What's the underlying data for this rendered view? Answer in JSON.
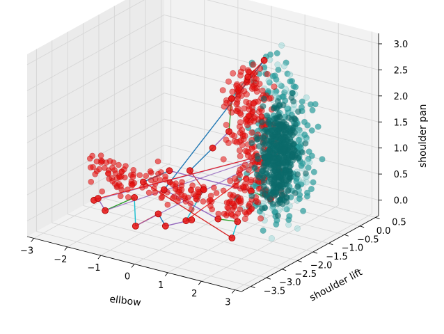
{
  "chart_data": {
    "type": "scatter",
    "projection": "3d",
    "title": "",
    "xlabel": "ellbow",
    "ylabel": "shoulder lift",
    "zlabel": "shoulder pan",
    "xlim": [
      -3.2,
      3.2
    ],
    "ylim": [
      -3.8,
      0.6
    ],
    "zlim": [
      -0.3,
      3.2
    ],
    "x_ticks": [
      -3,
      -2,
      -1,
      0,
      1,
      2,
      3
    ],
    "y_ticks": [
      -3.5,
      -3.0,
      -2.5,
      -2.0,
      -1.5,
      -1.0,
      -0.5,
      0.0,
      0.5
    ],
    "z_ticks": [
      0.0,
      0.5,
      1.0,
      1.5,
      2.0,
      2.5,
      3.0
    ],
    "x_tick_labels": [
      "−3",
      "−2",
      "−1",
      "0",
      "1",
      "2",
      "3"
    ],
    "y_tick_labels": [
      "−3.5",
      "−3.0",
      "−2.5",
      "−2.0",
      "−1.5",
      "−1.0",
      "−0.5",
      "0.0",
      "0.5"
    ],
    "z_tick_labels": [
      "0.0",
      "0.5",
      "1.0",
      "1.5",
      "2.0",
      "2.5",
      "3.0"
    ],
    "grid": true,
    "legend": "none",
    "colors": {
      "cloud": "#2a9d9d",
      "cloud_dark": "#0b6b6b",
      "cloud_light": "#8fd4d4",
      "red": "#e8100f",
      "red_edge": "#b00000",
      "pane": "#f2f2f2",
      "grid": "#d6d6d6",
      "line_blue": "#1f77b4",
      "line_purple": "#9467bd",
      "line_green": "#2ca02c",
      "line_cyan": "#17becf",
      "line_red": "#d62728"
    },
    "series": [
      {
        "name": "",
        "kind": "scatter",
        "color": "cloud",
        "points": [
          [
            1.6,
            -1.2,
            2.5
          ],
          [
            2.0,
            -1.0,
            2.1
          ],
          [
            1.9,
            -0.9,
            1.7
          ],
          [
            2.2,
            -1.3,
            1.3
          ],
          [
            1.7,
            -1.5,
            1.0
          ],
          [
            2.1,
            -1.1,
            0.6
          ],
          [
            2.4,
            -1.6,
            0.3
          ],
          [
            1.8,
            -1.8,
            2.0
          ],
          [
            2.3,
            -0.8,
            1.9
          ],
          [
            2.5,
            -1.4,
            1.5
          ],
          [
            2.6,
            -1.2,
            0.9
          ],
          [
            1.5,
            -0.7,
            2.3
          ],
          [
            2.0,
            -0.5,
            0.8
          ],
          [
            2.2,
            -2.0,
            0.5
          ],
          [
            1.4,
            -1.0,
            2.8
          ],
          [
            2.7,
            -1.9,
            1.2
          ],
          [
            1.9,
            -0.6,
            1.4
          ],
          [
            2.3,
            -1.7,
            2.2
          ],
          [
            1.7,
            -1.3,
            1.8
          ],
          [
            2.1,
            -2.2,
            0.9
          ]
        ]
      },
      {
        "name": "",
        "kind": "scatter",
        "color": "red",
        "points": [
          [
            -2.6,
            -2.3,
            0.0
          ],
          [
            -2.2,
            -2.6,
            0.2
          ],
          [
            -1.8,
            -2.8,
            0.1
          ],
          [
            -1.3,
            -2.4,
            0.3
          ],
          [
            -0.8,
            -2.9,
            0.0
          ],
          [
            -0.4,
            -2.6,
            0.2
          ],
          [
            0.0,
            -2.8,
            0.1
          ],
          [
            0.5,
            -2.5,
            0.2
          ],
          [
            0.8,
            -3.0,
            0.4
          ],
          [
            0.4,
            -2.0,
            0.6
          ],
          [
            -0.2,
            -1.8,
            0.8
          ],
          [
            0.2,
            -1.5,
            1.2
          ],
          [
            0.5,
            -1.3,
            1.5
          ],
          [
            0.3,
            -1.0,
            2.0
          ],
          [
            0.6,
            -0.8,
            2.4
          ],
          [
            0.9,
            -0.6,
            2.7
          ],
          [
            -0.6,
            -2.2,
            0.5
          ],
          [
            1.2,
            -2.4,
            0.3
          ],
          [
            1.5,
            -2.1,
            0.2
          ],
          [
            1.8,
            -2.6,
            0.1
          ],
          [
            -1.5,
            -1.9,
            0.4
          ],
          [
            -1.0,
            -1.6,
            0.6
          ],
          [
            2.0,
            -2.2,
            0.9
          ],
          [
            2.3,
            -1.9,
            0.7
          ]
        ]
      }
    ]
  }
}
